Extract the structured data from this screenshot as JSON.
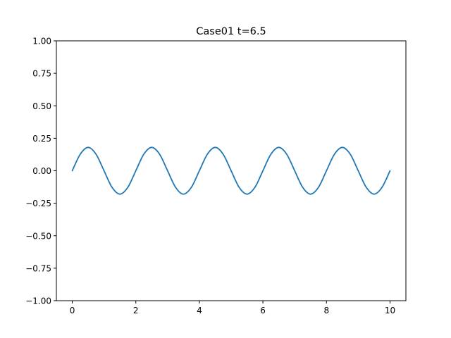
{
  "chart_data": {
    "type": "line",
    "title": "Case01 t=6.5",
    "xlabel": "",
    "ylabel": "",
    "xlim": [
      -0.5,
      10.5
    ],
    "ylim": [
      -1.0,
      1.0
    ],
    "grid": false,
    "x_ticks": [
      0,
      2,
      4,
      6,
      8,
      10
    ],
    "x_tick_labels": [
      "0",
      "2",
      "4",
      "6",
      "8",
      "10"
    ],
    "y_ticks": [
      1.0,
      0.75,
      0.5,
      0.25,
      0.0,
      -0.25,
      -0.5,
      -0.75,
      -1.0
    ],
    "y_tick_labels": [
      "1.00",
      "0.75",
      "0.50",
      "0.25",
      "0.00",
      "−0.25",
      "−0.50",
      "−0.75",
      "−1.00"
    ],
    "series": [
      {
        "color": "#1f77b4",
        "x": [
          0,
          0.25,
          0.5,
          0.75,
          1.0,
          1.25,
          1.5,
          1.75,
          2.0,
          2.25,
          2.5,
          2.75,
          3.0,
          3.25,
          3.5,
          3.75,
          4.0,
          4.25,
          4.5,
          4.75,
          5.0,
          5.25,
          5.5,
          5.75,
          6.0,
          6.25,
          6.5,
          6.75,
          7.0,
          7.25,
          7.5,
          7.75,
          8.0,
          8.25,
          8.5,
          8.75,
          9.0,
          9.25,
          9.5,
          9.75,
          10.0
        ],
        "y": [
          0.0,
          0.127,
          0.18,
          0.127,
          0.0,
          -0.127,
          -0.18,
          -0.127,
          0.0,
          0.127,
          0.18,
          0.127,
          0.0,
          -0.127,
          -0.18,
          -0.127,
          0.0,
          0.127,
          0.18,
          0.127,
          0.0,
          -0.127,
          -0.18,
          -0.127,
          0.0,
          0.127,
          0.18,
          0.127,
          0.0,
          -0.127,
          -0.18,
          -0.127,
          0.0,
          0.127,
          0.18,
          0.127,
          0.0,
          -0.127,
          -0.18,
          -0.127,
          0.0
        ]
      }
    ]
  }
}
